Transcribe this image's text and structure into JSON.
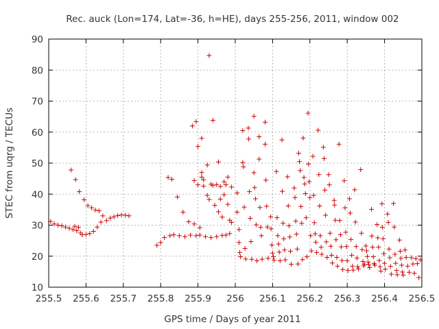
{
  "chart_data": {
    "type": "scatter",
    "title": "Rec. auck (Lon=174, Lat=-36, h=HE), days 255-256, 2011, window 002",
    "xlabel": "GPS time / Days of year 2011",
    "ylabel": "STEC from uqrg / TECUs",
    "xlim": [
      255.5,
      256.5
    ],
    "ylim": [
      10,
      90
    ],
    "xticks": [
      255.5,
      255.6,
      255.7,
      255.8,
      255.9,
      256,
      256.1,
      256.2,
      256.3,
      256.4,
      256.5
    ],
    "xtick_labels": [
      "255.5",
      "255.6",
      "255.7",
      "255.8",
      "255.9",
      "256",
      "256.1",
      "256.2",
      "256.3",
      "256.4",
      "256.5"
    ],
    "yticks": [
      10,
      20,
      30,
      40,
      50,
      60,
      70,
      80,
      90
    ],
    "ytick_labels": [
      "10",
      "20",
      "30",
      "40",
      "50",
      "60",
      "70",
      "80",
      "90"
    ],
    "grid": true,
    "marker": "plus",
    "color": "#cc0000",
    "series": [
      {
        "points": [
          [
            255.505,
            31.2
          ],
          [
            255.515,
            30.4
          ],
          [
            255.525,
            30.0
          ],
          [
            255.535,
            29.8
          ],
          [
            255.545,
            29.4
          ],
          [
            255.555,
            29.0
          ],
          [
            255.56,
            47.8
          ],
          [
            255.565,
            28.6
          ],
          [
            255.57,
            29.6
          ],
          [
            255.572,
            44.7
          ],
          [
            255.575,
            28.2
          ],
          [
            255.58,
            29.3
          ],
          [
            255.582,
            40.8
          ],
          [
            255.585,
            27.5
          ],
          [
            255.59,
            26.9
          ],
          [
            255.595,
            38.2
          ],
          [
            255.6,
            27.0
          ],
          [
            255.605,
            36.3
          ],
          [
            255.61,
            27.3
          ],
          [
            255.615,
            35.6
          ],
          [
            255.62,
            28.0
          ],
          [
            255.625,
            34.9
          ],
          [
            255.63,
            29.4
          ],
          [
            255.635,
            34.6
          ],
          [
            255.64,
            31.0
          ],
          [
            255.645,
            33.0
          ],
          [
            255.655,
            31.5
          ],
          [
            255.665,
            32.3
          ],
          [
            255.675,
            32.7
          ],
          [
            255.685,
            33.1
          ],
          [
            255.695,
            33.3
          ],
          [
            255.705,
            33.2
          ],
          [
            255.715,
            33.0
          ],
          [
            255.79,
            23.5
          ],
          [
            255.8,
            24.4
          ],
          [
            255.81,
            26.0
          ],
          [
            255.82,
            45.4
          ],
          [
            255.825,
            26.6
          ],
          [
            255.83,
            44.8
          ],
          [
            255.835,
            26.9
          ],
          [
            255.845,
            39.1
          ],
          [
            255.85,
            26.6
          ],
          [
            255.86,
            34.2
          ],
          [
            255.865,
            26.3
          ],
          [
            255.875,
            31.1
          ],
          [
            255.88,
            26.8
          ],
          [
            255.885,
            62.0
          ],
          [
            255.89,
            44.4
          ],
          [
            255.89,
            30.4
          ],
          [
            255.895,
            26.6
          ],
          [
            255.895,
            63.4
          ],
          [
            255.9,
            55.4
          ],
          [
            255.9,
            43.0
          ],
          [
            255.905,
            29.2
          ],
          [
            255.905,
            26.8
          ],
          [
            255.91,
            58.0
          ],
          [
            255.91,
            47.0
          ],
          [
            255.91,
            45.5
          ],
          [
            255.915,
            44.6
          ],
          [
            255.915,
            42.6
          ],
          [
            255.92,
            26.3
          ],
          [
            255.925,
            49.4
          ],
          [
            255.925,
            39.6
          ],
          [
            255.93,
            84.7
          ],
          [
            255.93,
            38.3
          ],
          [
            255.935,
            26.0
          ],
          [
            255.935,
            43.2
          ],
          [
            255.94,
            63.8
          ],
          [
            255.94,
            42.8
          ],
          [
            255.945,
            36.4
          ],
          [
            255.95,
            43.1
          ],
          [
            255.95,
            26.3
          ],
          [
            255.955,
            50.4
          ],
          [
            255.955,
            34.3
          ],
          [
            255.96,
            42.5
          ],
          [
            255.96,
            38.4
          ],
          [
            255.965,
            26.7
          ],
          [
            255.965,
            32.6
          ],
          [
            255.97,
            44.0
          ],
          [
            255.97,
            39.8
          ],
          [
            255.975,
            26.8
          ],
          [
            255.975,
            43.0
          ],
          [
            255.98,
            45.5
          ],
          [
            255.98,
            36.7
          ],
          [
            255.985,
            31.6
          ],
          [
            255.985,
            27.3
          ],
          [
            255.99,
            42.3
          ],
          [
            255.99,
            30.9
          ],
          [
            256.005,
            40.4
          ],
          [
            256.005,
            34.2
          ],
          [
            256.01,
            28.6
          ],
          [
            256.01,
            24.4
          ],
          [
            256.012,
            21.2
          ],
          [
            256.014,
            19.8
          ],
          [
            256.02,
            60.5
          ],
          [
            256.02,
            50.2
          ],
          [
            256.022,
            48.8
          ],
          [
            256.024,
            35.8
          ],
          [
            256.026,
            22.5
          ],
          [
            256.028,
            19.1
          ],
          [
            256.035,
            61.3
          ],
          [
            256.036,
            57.8
          ],
          [
            256.038,
            40.8
          ],
          [
            256.04,
            32.2
          ],
          [
            256.042,
            24.7
          ],
          [
            256.044,
            19.0
          ],
          [
            256.05,
            65.1
          ],
          [
            256.05,
            46.9
          ],
          [
            256.052,
            42.1
          ],
          [
            256.054,
            38.5
          ],
          [
            256.056,
            30.1
          ],
          [
            256.058,
            18.5
          ],
          [
            256.064,
            58.5
          ],
          [
            256.064,
            51.3
          ],
          [
            256.066,
            35.7
          ],
          [
            256.068,
            29.3
          ],
          [
            256.07,
            26.6
          ],
          [
            256.072,
            19.0
          ],
          [
            256.08,
            63.2
          ],
          [
            256.08,
            56.1
          ],
          [
            256.082,
            44.5
          ],
          [
            256.084,
            36.1
          ],
          [
            256.086,
            29.4
          ],
          [
            256.088,
            19.3
          ],
          [
            256.095,
            32.7
          ],
          [
            256.096,
            28.8
          ],
          [
            256.098,
            23.6
          ],
          [
            256.1,
            21.0
          ],
          [
            256.102,
            19.8
          ],
          [
            256.104,
            18.7
          ],
          [
            256.11,
            47.3
          ],
          [
            256.112,
            32.4
          ],
          [
            256.114,
            26.6
          ],
          [
            256.116,
            23.9
          ],
          [
            256.118,
            21.3
          ],
          [
            256.12,
            18.5
          ],
          [
            256.125,
            57.5
          ],
          [
            256.126,
            40.9
          ],
          [
            256.128,
            30.6
          ],
          [
            256.13,
            25.6
          ],
          [
            256.132,
            22.0
          ],
          [
            256.134,
            18.8
          ],
          [
            256.14,
            45.6
          ],
          [
            256.142,
            36.2
          ],
          [
            256.144,
            29.8
          ],
          [
            256.146,
            26.2
          ],
          [
            256.148,
            21.6
          ],
          [
            256.15,
            17.4
          ],
          [
            256.158,
            42.0
          ],
          [
            256.16,
            38.9
          ],
          [
            256.162,
            31.3
          ],
          [
            256.164,
            27.1
          ],
          [
            256.166,
            22.3
          ],
          [
            256.168,
            17.5
          ],
          [
            256.17,
            53.2
          ],
          [
            256.172,
            50.5
          ],
          [
            256.174,
            47.6
          ],
          [
            256.176,
            36.0
          ],
          [
            256.178,
            30.6
          ],
          [
            256.18,
            18.9
          ],
          [
            256.182,
            58.1
          ],
          [
            256.184,
            45.4
          ],
          [
            256.186,
            43.3
          ],
          [
            256.188,
            40.2
          ],
          [
            256.19,
            32.4
          ],
          [
            256.192,
            19.8
          ],
          [
            256.195,
            66.1
          ],
          [
            256.196,
            49.7
          ],
          [
            256.198,
            44.0
          ],
          [
            256.2,
            38.9
          ],
          [
            256.202,
            26.6
          ],
          [
            256.204,
            21.7
          ],
          [
            256.208,
            52.2
          ],
          [
            256.21,
            39.6
          ],
          [
            256.212,
            30.8
          ],
          [
            256.214,
            27.2
          ],
          [
            256.216,
            24.5
          ],
          [
            256.218,
            21.2
          ],
          [
            256.222,
            60.6
          ],
          [
            256.224,
            46.3
          ],
          [
            256.226,
            36.2
          ],
          [
            256.228,
            26.6
          ],
          [
            256.23,
            22.9
          ],
          [
            256.232,
            20.6
          ],
          [
            256.236,
            55.1
          ],
          [
            256.238,
            51.5
          ],
          [
            256.24,
            41.3
          ],
          [
            256.242,
            33.2
          ],
          [
            256.244,
            24.6
          ],
          [
            256.246,
            19.6
          ],
          [
            256.25,
            46.3
          ],
          [
            256.252,
            43.0
          ],
          [
            256.254,
            27.4
          ],
          [
            256.256,
            23.2
          ],
          [
            256.258,
            20.3
          ],
          [
            256.26,
            17.8
          ],
          [
            256.265,
            38.0
          ],
          [
            256.266,
            36.5
          ],
          [
            256.268,
            31.6
          ],
          [
            256.27,
            25.3
          ],
          [
            256.272,
            19.6
          ],
          [
            256.274,
            16.8
          ],
          [
            256.278,
            56.1
          ],
          [
            256.28,
            31.5
          ],
          [
            256.282,
            26.9
          ],
          [
            256.284,
            23.0
          ],
          [
            256.286,
            18.6
          ],
          [
            256.288,
            15.7
          ],
          [
            256.292,
            44.3
          ],
          [
            256.294,
            35.6
          ],
          [
            256.296,
            27.7
          ],
          [
            256.298,
            23.1
          ],
          [
            256.3,
            18.5
          ],
          [
            256.302,
            15.4
          ],
          [
            256.306,
            38.5
          ],
          [
            256.308,
            33.9
          ],
          [
            256.31,
            25.4
          ],
          [
            256.312,
            20.3
          ],
          [
            256.314,
            16.8
          ],
          [
            256.316,
            15.5
          ],
          [
            256.32,
            41.4
          ],
          [
            256.322,
            31.0
          ],
          [
            256.324,
            23.1
          ],
          [
            256.326,
            19.4
          ],
          [
            256.328,
            16.6
          ],
          [
            256.33,
            15.9
          ],
          [
            256.336,
            47.9
          ],
          [
            256.338,
            27.4
          ],
          [
            256.34,
            22.1
          ],
          [
            256.342,
            18.3
          ],
          [
            256.344,
            16.9
          ],
          [
            256.346,
            17.4
          ],
          [
            256.35,
            23.3
          ],
          [
            256.352,
            21.7
          ],
          [
            256.354,
            19.9
          ],
          [
            256.356,
            18.1
          ],
          [
            256.358,
            17.2
          ],
          [
            256.36,
            16.3
          ],
          [
            256.365,
            35.1
          ],
          [
            256.366,
            26.5
          ],
          [
            256.368,
            22.9
          ],
          [
            256.37,
            19.8
          ],
          [
            256.372,
            17.6
          ],
          [
            256.374,
            17.1
          ],
          [
            256.38,
            30.2
          ],
          [
            256.382,
            25.9
          ],
          [
            256.384,
            22.9
          ],
          [
            256.386,
            18.6
          ],
          [
            256.388,
            16.6
          ],
          [
            256.39,
            15.2
          ],
          [
            256.393,
            36.9
          ],
          [
            256.394,
            29.3
          ],
          [
            256.396,
            25.6
          ],
          [
            256.398,
            20.8
          ],
          [
            256.4,
            17.7
          ],
          [
            256.402,
            15.8
          ],
          [
            256.408,
            33.6
          ],
          [
            256.41,
            30.9
          ],
          [
            256.412,
            22.3
          ],
          [
            256.414,
            19.5
          ],
          [
            256.416,
            16.7
          ],
          [
            256.418,
            14.2
          ],
          [
            256.424,
            37.0
          ],
          [
            256.426,
            29.4
          ],
          [
            256.428,
            20.6
          ],
          [
            256.43,
            17.7
          ],
          [
            256.432,
            15.4
          ],
          [
            256.434,
            14.0
          ],
          [
            256.44,
            25.2
          ],
          [
            256.442,
            21.6
          ],
          [
            256.444,
            19.3
          ],
          [
            256.446,
            17.1
          ],
          [
            256.448,
            14.9
          ],
          [
            256.45,
            13.9
          ],
          [
            256.455,
            22.0
          ],
          [
            256.458,
            19.6
          ],
          [
            256.462,
            16.8
          ],
          [
            256.466,
            14.8
          ],
          [
            256.472,
            19.5
          ],
          [
            256.476,
            17.5
          ],
          [
            256.48,
            14.5
          ],
          [
            256.484,
            19.2
          ],
          [
            256.488,
            17.6
          ],
          [
            256.492,
            13.1
          ],
          [
            256.496,
            18.8
          ]
        ]
      }
    ]
  }
}
